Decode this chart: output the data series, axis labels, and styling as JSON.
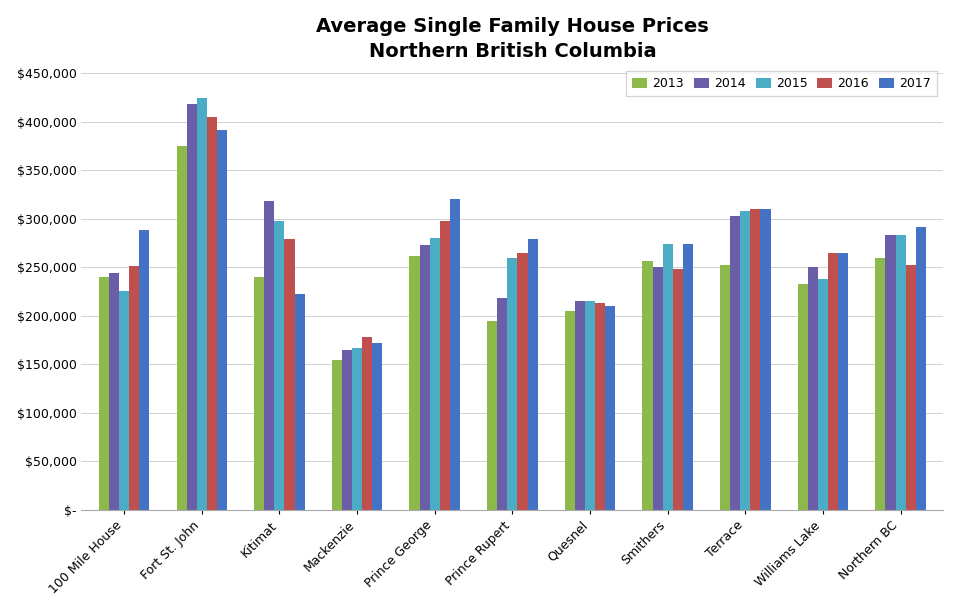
{
  "title": "Average Single Family House Prices\nNorthern British Columbia",
  "categories": [
    "100 Mile House",
    "Fort St. John",
    "Kitimat",
    "Mackenzie",
    "Prince George",
    "Prince Rupert",
    "Quesnel",
    "Smithers",
    "Terrace",
    "Williams Lake",
    "Northern BC"
  ],
  "years": [
    "2013",
    "2014",
    "2015",
    "2016",
    "2017"
  ],
  "colors": [
    "#8db84a",
    "#6a5ea8",
    "#4bacc6",
    "#c0504d",
    "#4472c4"
  ],
  "data": {
    "2013": [
      240000,
      375000,
      240000,
      155000,
      262000,
      195000,
      205000,
      257000,
      252000,
      233000,
      260000
    ],
    "2014": [
      244000,
      418000,
      318000,
      165000,
      273000,
      218000,
      215000,
      250000,
      303000,
      250000,
      283000
    ],
    "2015": [
      226000,
      425000,
      298000,
      167000,
      280000,
      260000,
      215000,
      274000,
      308000,
      238000,
      283000
    ],
    "2016": [
      251000,
      405000,
      279000,
      178000,
      298000,
      265000,
      213000,
      248000,
      310000,
      265000,
      252000
    ],
    "2017": [
      288000,
      392000,
      223000,
      172000,
      320000,
      279000,
      210000,
      274000,
      310000,
      265000,
      292000
    ]
  },
  "ylim": [
    0,
    450000
  ],
  "yticks": [
    0,
    50000,
    100000,
    150000,
    200000,
    250000,
    300000,
    350000,
    400000,
    450000
  ],
  "background_color": "#ffffff",
  "grid_color": "#d0d0d0",
  "bar_width": 0.13,
  "figsize": [
    9.6,
    6.13
  ],
  "title_fontsize": 14,
  "tick_fontsize": 9,
  "legend_fontsize": 9
}
